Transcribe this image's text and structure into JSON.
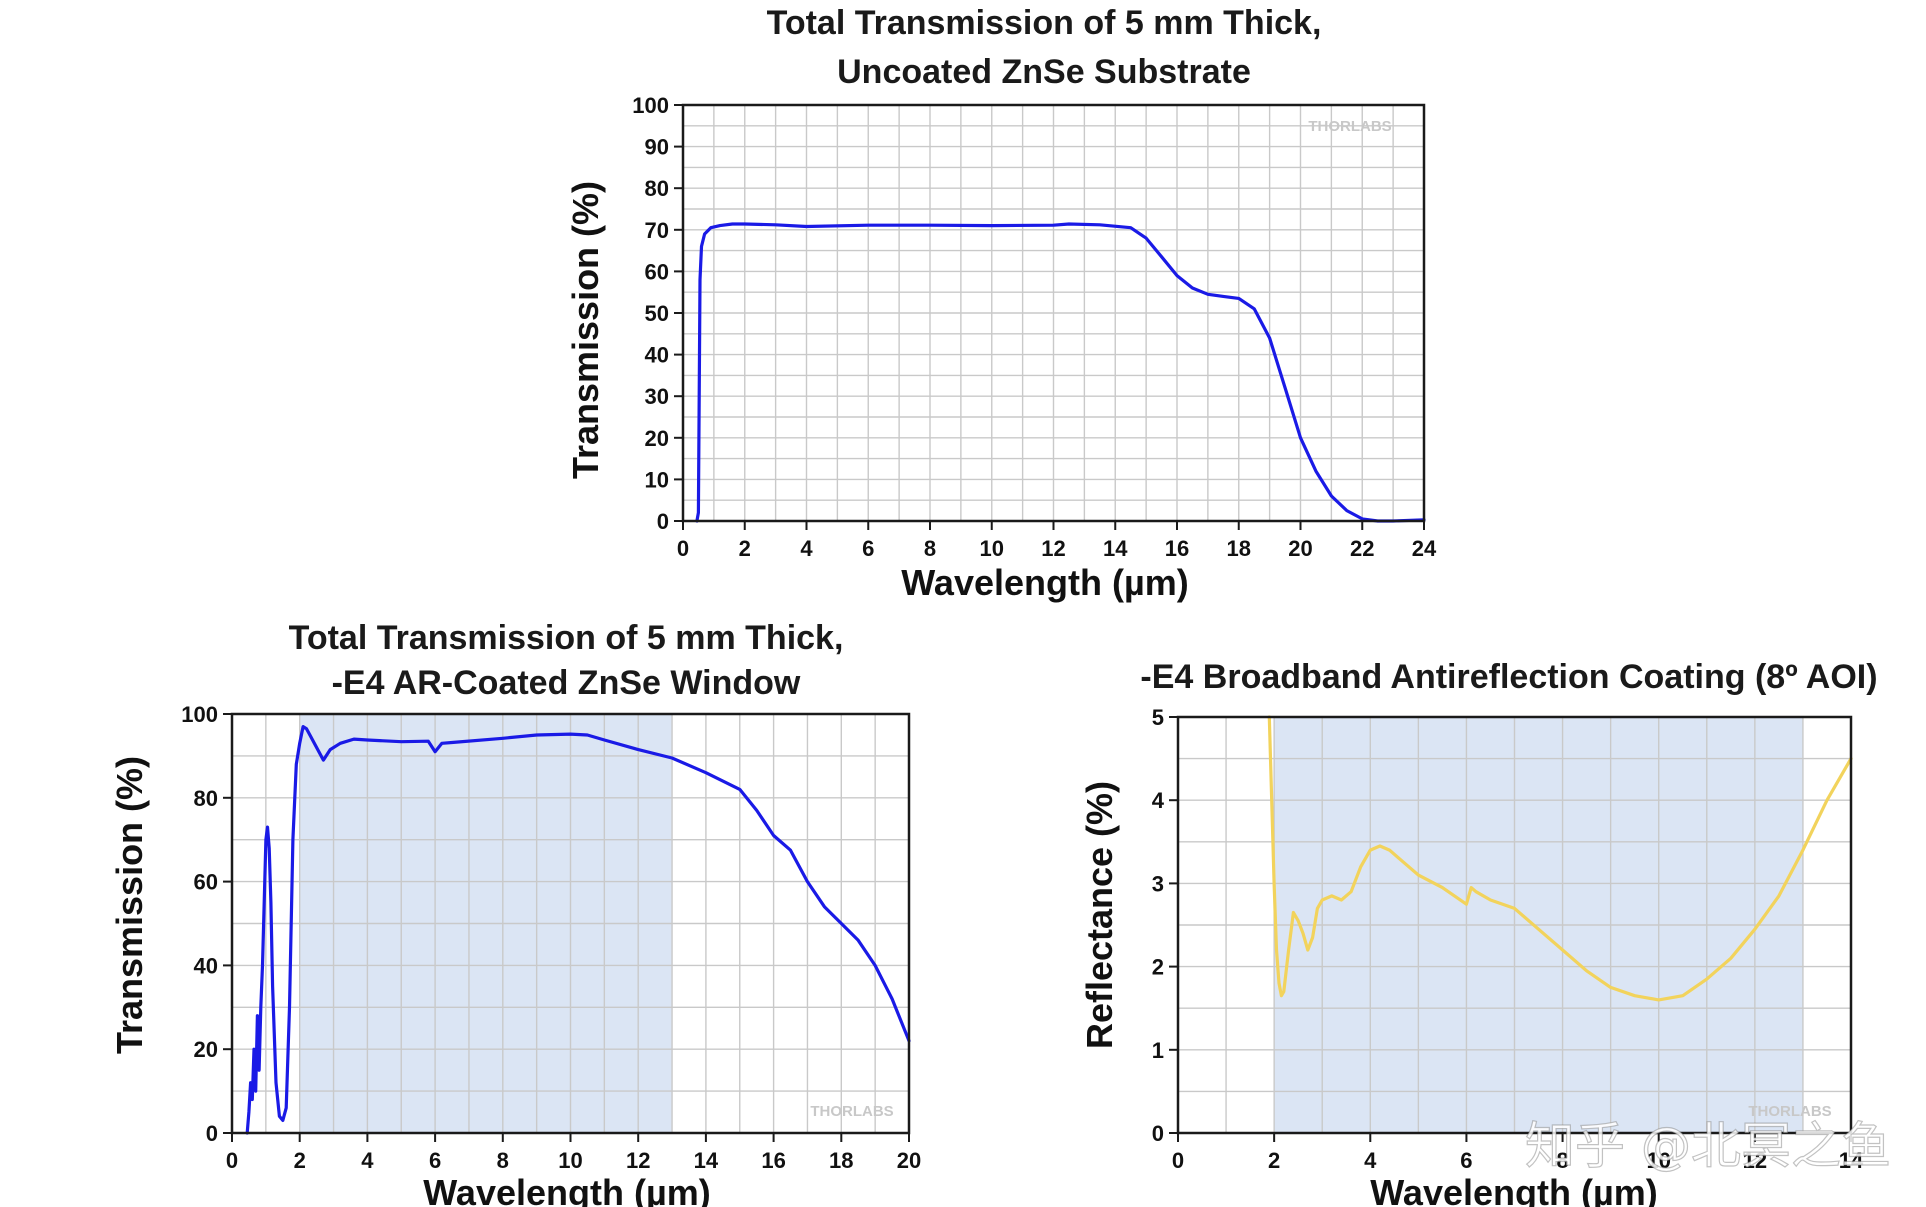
{
  "colors": {
    "top_series": "#1a1ae6",
    "bottom_left_series": "#1a1ae6",
    "bottom_right_series": "#f2d35c",
    "shaded_band": "#dbe5f4",
    "grid": "#c9c9c9"
  },
  "watermarks": {
    "thorlabs": "THORLABS",
    "zhihu": "知乎 @北冥之鱼"
  },
  "chart_data": [
    {
      "type": "line",
      "title": [
        "Total Transmission of 5 mm Thick,",
        "Uncoated ZnSe Substrate"
      ],
      "xlabel": "Wavelength (µm)",
      "ylabel": "Transmission (%)",
      "xlim": [
        0,
        24
      ],
      "ylim": [
        0,
        100
      ],
      "xticks": [
        0,
        2,
        4,
        6,
        8,
        10,
        12,
        14,
        16,
        18,
        20,
        22,
        24
      ],
      "yticks": [
        0,
        10,
        20,
        30,
        40,
        50,
        60,
        70,
        80,
        90,
        100
      ],
      "grid": true,
      "series": [
        {
          "x": [
            0.45,
            0.5,
            0.55,
            0.6,
            0.7,
            0.9,
            1.2,
            1.6,
            2,
            3,
            4,
            6,
            8,
            10,
            12,
            12.5,
            13.5,
            14.5,
            15,
            15.5,
            16,
            16.5,
            17,
            17.5,
            18,
            18.5,
            19,
            19.5,
            20,
            20.5,
            21,
            21.5,
            22,
            22.5,
            23,
            24
          ],
          "values": [
            0,
            2,
            58,
            66,
            69,
            70.5,
            71,
            71.4,
            71.4,
            71.2,
            70.8,
            71.1,
            71.1,
            71,
            71.1,
            71.4,
            71.2,
            70.5,
            68,
            63.5,
            59,
            56,
            54.5,
            54,
            53.5,
            51,
            44,
            32,
            20,
            12,
            6,
            2.5,
            0.5,
            0,
            0,
            0.3
          ]
        }
      ]
    },
    {
      "type": "line",
      "title": [
        "Total Transmission of 5 mm Thick,",
        "-E4 AR-Coated ZnSe Window"
      ],
      "xlabel": "Wavelength (µm)",
      "ylabel": "Transmission (%)",
      "xlim": [
        0,
        20
      ],
      "ylim": [
        0,
        100
      ],
      "xticks": [
        0,
        2,
        4,
        6,
        8,
        10,
        12,
        14,
        16,
        18,
        20
      ],
      "yticks": [
        0,
        20,
        40,
        60,
        80,
        100
      ],
      "grid": true,
      "shaded_region": [
        2,
        13
      ],
      "series": [
        {
          "x": [
            0.45,
            0.5,
            0.55,
            0.6,
            0.65,
            0.7,
            0.75,
            0.8,
            0.85,
            0.9,
            0.95,
            1.0,
            1.05,
            1.1,
            1.15,
            1.2,
            1.3,
            1.4,
            1.5,
            1.6,
            1.7,
            1.8,
            1.9,
            2.0,
            2.1,
            2.2,
            2.3,
            2.5,
            2.7,
            2.9,
            3.2,
            3.6,
            4,
            5,
            5.8,
            6,
            6.2,
            6.5,
            8,
            9,
            10,
            10.5,
            11,
            12,
            13,
            14,
            15,
            15.5,
            16,
            16.5,
            17,
            17.5,
            18,
            18.5,
            19,
            19.5,
            20
          ],
          "values": [
            0,
            5,
            12,
            8,
            20,
            10,
            28,
            15,
            30,
            40,
            55,
            70,
            73,
            68,
            55,
            35,
            12,
            4,
            3,
            6,
            30,
            70,
            88,
            93,
            97,
            96.5,
            95,
            92,
            89,
            91.5,
            93,
            94,
            93.8,
            93.4,
            93.5,
            91,
            93,
            93.2,
            94.2,
            95,
            95.2,
            95,
            93.8,
            91.5,
            89.5,
            86,
            82,
            77,
            71,
            67.5,
            60,
            54,
            50,
            46,
            40,
            32,
            22
          ]
        }
      ]
    },
    {
      "type": "line",
      "title": [
        "-E4 Broadband Antireflection Coating (8º AOI)"
      ],
      "xlabel": "Wavelength (µm)",
      "ylabel": "Reflectance (%)",
      "xlim": [
        0,
        14
      ],
      "ylim": [
        0,
        5
      ],
      "xticks": [
        0,
        2,
        4,
        6,
        8,
        10,
        12,
        14
      ],
      "yticks": [
        0,
        1,
        2,
        3,
        4,
        5
      ],
      "grid": true,
      "shaded_region": [
        2,
        13
      ],
      "series": [
        {
          "x": [
            1.9,
            1.95,
            2.0,
            2.05,
            2.1,
            2.15,
            2.2,
            2.3,
            2.4,
            2.5,
            2.6,
            2.7,
            2.8,
            2.9,
            3.0,
            3.2,
            3.4,
            3.6,
            3.8,
            4.0,
            4.2,
            4.4,
            4.6,
            5.0,
            5.5,
            6.0,
            6.1,
            6.2,
            6.5,
            7.0,
            7.5,
            8.0,
            8.5,
            9.0,
            9.5,
            10.0,
            10.5,
            11.0,
            11.5,
            12.0,
            12.5,
            13.0,
            13.5,
            14.0
          ],
          "values": [
            5,
            4,
            3,
            2.2,
            1.8,
            1.65,
            1.7,
            2.2,
            2.65,
            2.55,
            2.4,
            2.2,
            2.35,
            2.7,
            2.8,
            2.85,
            2.8,
            2.9,
            3.2,
            3.4,
            3.45,
            3.4,
            3.3,
            3.1,
            2.95,
            2.75,
            2.95,
            2.9,
            2.8,
            2.7,
            2.45,
            2.2,
            1.95,
            1.75,
            1.65,
            1.6,
            1.65,
            1.85,
            2.1,
            2.45,
            2.85,
            3.4,
            4.0,
            4.5
          ]
        }
      ]
    }
  ]
}
